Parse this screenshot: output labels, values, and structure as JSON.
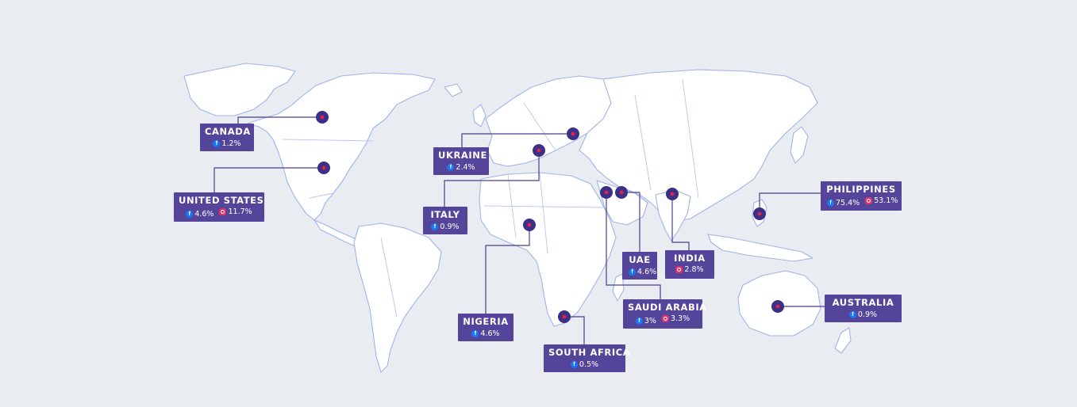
{
  "colors": {
    "background": "#e9ecf1",
    "land": "#ffffff",
    "coast": "#9fb4e8",
    "label_bg": "#54449a",
    "marker": "#3c2f86",
    "marker_dot": "#e0224a",
    "facebook": "#1877f2",
    "instagram": "#e1306c"
  },
  "icons": {
    "facebook": "facebook-icon",
    "instagram": "instagram-icon"
  },
  "countries": [
    {
      "id": "canada",
      "name": "CANADA",
      "stats": [
        {
          "platform": "facebook",
          "value": "1.2%"
        }
      ]
    },
    {
      "id": "united-states",
      "name": "UNITED STATES",
      "stats": [
        {
          "platform": "facebook",
          "value": "4.6%"
        },
        {
          "platform": "instagram",
          "value": "11.7%"
        }
      ]
    },
    {
      "id": "ukraine",
      "name": "UKRAINE",
      "stats": [
        {
          "platform": "facebook",
          "value": "2.4%"
        }
      ]
    },
    {
      "id": "italy",
      "name": "ITALY",
      "stats": [
        {
          "platform": "facebook",
          "value": "0.9%"
        }
      ]
    },
    {
      "id": "nigeria",
      "name": "NIGERIA",
      "stats": [
        {
          "platform": "facebook",
          "value": "4.6%"
        }
      ]
    },
    {
      "id": "south-africa",
      "name": "SOUTH AFRICA",
      "stats": [
        {
          "platform": "facebook",
          "value": "0.5%"
        }
      ]
    },
    {
      "id": "uae",
      "name": "UAE",
      "stats": [
        {
          "platform": "facebook",
          "value": "4.6%"
        }
      ]
    },
    {
      "id": "saudi-arabia",
      "name": "SAUDI ARABIA",
      "stats": [
        {
          "platform": "facebook",
          "value": "3%"
        },
        {
          "platform": "instagram",
          "value": "3.3%"
        }
      ]
    },
    {
      "id": "india",
      "name": "INDIA",
      "stats": [
        {
          "platform": "instagram",
          "value": "2.8%"
        }
      ]
    },
    {
      "id": "philippines",
      "name": "PHILIPPINES",
      "stats": [
        {
          "platform": "facebook",
          "value": "75.4%"
        },
        {
          "platform": "instagram",
          "value": "53.1%"
        }
      ]
    },
    {
      "id": "australia",
      "name": "AUSTRALIA",
      "stats": [
        {
          "platform": "facebook",
          "value": "0.9%"
        }
      ]
    }
  ]
}
